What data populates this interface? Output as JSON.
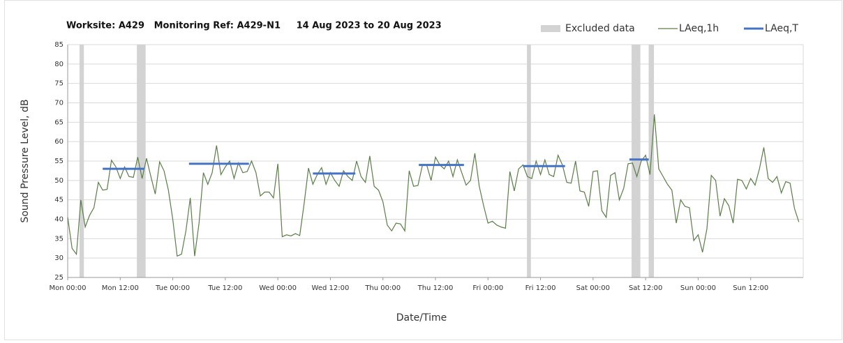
{
  "chart_data": {
    "type": "line",
    "title": "Worksite: A429   Monitoring Ref: A429-N1     14 Aug 2023 to 20 Aug 2023",
    "x_label": "Date/Time",
    "y_label": "Sound Pressure Level, dB",
    "xlim": [
      0,
      168
    ],
    "ylim": [
      25,
      85
    ],
    "yticks": [
      25,
      30,
      35,
      40,
      45,
      50,
      55,
      60,
      65,
      70,
      75,
      80,
      85
    ],
    "xticks": [
      {
        "value": 0,
        "label": "Mon 00:00"
      },
      {
        "value": 12,
        "label": "Mon 12:00"
      },
      {
        "value": 24,
        "label": "Tue 00:00"
      },
      {
        "value": 36,
        "label": "Tue 12:00"
      },
      {
        "value": 48,
        "label": "Wed 00:00"
      },
      {
        "value": 60,
        "label": "Wed 12:00"
      },
      {
        "value": 72,
        "label": "Thu 00:00"
      },
      {
        "value": 84,
        "label": "Thu 12:00"
      },
      {
        "value": 96,
        "label": "Fri 00:00"
      },
      {
        "value": 108,
        "label": "Fri 12:00"
      },
      {
        "value": 120,
        "label": "Sat 00:00"
      },
      {
        "value": 132,
        "label": "Sat 12:00"
      },
      {
        "value": 144,
        "label": "Sun 00:00"
      },
      {
        "value": 156,
        "label": "Sun 12:00"
      }
    ],
    "grid": true,
    "excluded": {
      "name": "Excluded data",
      "color": "#d3d3d3",
      "ranges": [
        [
          2.7,
          3.7
        ],
        [
          15.8,
          17.8
        ],
        [
          104.9,
          105.8
        ],
        [
          128.8,
          130.8
        ],
        [
          132.7,
          133.9
        ]
      ]
    },
    "series": [
      {
        "name": "LAeq,1h",
        "color": "#5b7d48",
        "x": [
          0,
          1,
          2,
          3,
          4,
          5,
          6,
          7,
          8,
          9,
          10,
          11,
          12,
          13,
          14,
          15,
          16,
          17,
          18,
          19,
          20,
          21,
          22,
          23,
          24,
          25,
          26,
          27,
          28,
          29,
          30,
          31,
          32,
          33,
          34,
          35,
          36,
          37,
          38,
          39,
          40,
          41,
          42,
          43,
          44,
          45,
          46,
          47,
          48,
          49,
          50,
          51,
          52,
          53,
          54,
          55,
          56,
          57,
          58,
          59,
          60,
          61,
          62,
          63,
          64,
          65,
          66,
          67,
          68,
          69,
          70,
          71,
          72,
          73,
          74,
          75,
          76,
          77,
          78,
          79,
          80,
          81,
          82,
          83,
          84,
          85,
          86,
          87,
          88,
          89,
          90,
          91,
          92,
          93,
          94,
          95,
          96,
          97,
          98,
          99,
          100,
          101,
          102,
          103,
          104,
          105,
          106,
          107,
          108,
          109,
          110,
          111,
          112,
          113,
          114,
          115,
          116,
          117,
          118,
          119,
          120,
          121,
          122,
          123,
          124,
          125,
          126,
          127,
          128,
          129,
          130,
          131,
          132,
          133,
          134,
          135,
          136,
          137,
          138,
          139,
          140,
          141,
          142,
          143,
          144,
          145,
          146,
          147,
          148,
          149,
          150,
          151,
          152,
          153,
          154,
          155,
          156,
          157,
          158,
          159,
          160,
          161,
          162,
          163,
          164,
          165,
          166,
          167
        ],
        "values": [
          40.5,
          32.5,
          31,
          45,
          38,
          41,
          43,
          49.5,
          47.5,
          47.7,
          55.2,
          53.5,
          50.5,
          53.5,
          51,
          50.8,
          56,
          50.5,
          55.7,
          51,
          46.5,
          54.8,
          52.5,
          47.5,
          40,
          30.5,
          31,
          37,
          45.5,
          30.5,
          39,
          52,
          49,
          52,
          59,
          51.5,
          53.5,
          55,
          50.5,
          54.5,
          52,
          52.3,
          55,
          52,
          46,
          47,
          47,
          45.5,
          54.3,
          35.5,
          36,
          35.7,
          36.3,
          35.8,
          44,
          53.2,
          49,
          51.5,
          53.3,
          49,
          52,
          50,
          48.5,
          52.5,
          51,
          50,
          55,
          51,
          49.5,
          56.3,
          48.5,
          47.5,
          44.5,
          38.5,
          37,
          39,
          38.8,
          37,
          52.5,
          48.5,
          48.7,
          53.8,
          54,
          50,
          56,
          54,
          53,
          55,
          51,
          55.3,
          52,
          48.8,
          50,
          57,
          48.5,
          43.5,
          39,
          39.5,
          38.5,
          38,
          37.7,
          52.3,
          47.3,
          53,
          54,
          51,
          50.5,
          55,
          51.5,
          55.3,
          51.5,
          51,
          56.5,
          54,
          49.5,
          49.3,
          55,
          47.3,
          47,
          43.3,
          52.3,
          52.5,
          42.2,
          40.5,
          51.3,
          52,
          45,
          48,
          54.3,
          54.5,
          51,
          55,
          56.5,
          51.5,
          67,
          53,
          51,
          49,
          47.5,
          39,
          45,
          43.3,
          43,
          34.5,
          36,
          31.5,
          37.5,
          51.3,
          50,
          40.8,
          45.3,
          43.5,
          39,
          50.3,
          50,
          47.8,
          50.5,
          48.8,
          53,
          58.5,
          50.5,
          49.5,
          51,
          46.8,
          49.7,
          49.3,
          42.8,
          39.3
        ]
      },
      {
        "name": "LAeq,T",
        "color": "#4472c4",
        "segments": [
          {
            "x": [
              8,
              17.5
            ],
            "value": 53
          },
          {
            "x": [
              27.7,
              41.4
            ],
            "value": 54.3
          },
          {
            "x": [
              56,
              65.7
            ],
            "value": 51.8
          },
          {
            "x": [
              80.2,
              90.5
            ],
            "value": 54
          },
          {
            "x": [
              104,
              113.6
            ],
            "value": 53.7
          },
          {
            "x": [
              128.3,
              132.7
            ],
            "value": 55.4
          }
        ]
      }
    ]
  }
}
